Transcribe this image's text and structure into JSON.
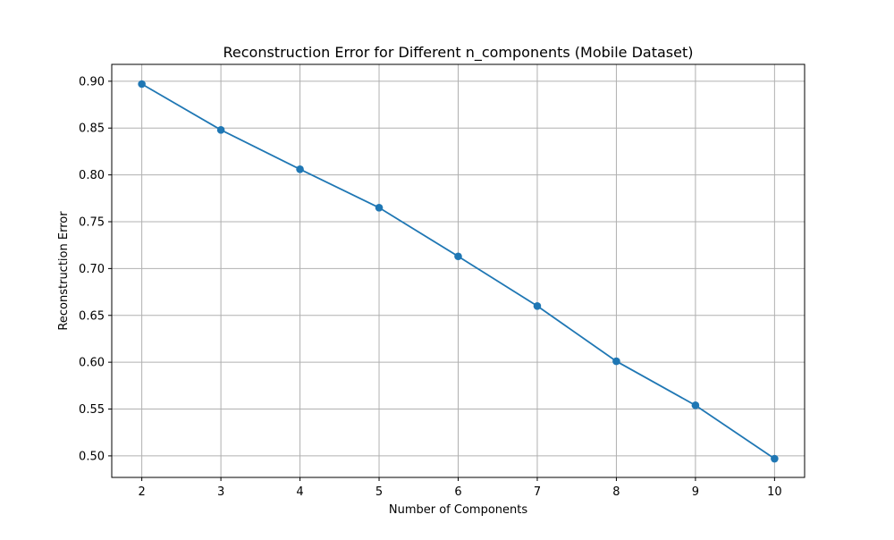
{
  "chart_data": {
    "type": "line",
    "title": "Reconstruction Error for Different n_components (Mobile Dataset)",
    "xlabel": "Number of Components",
    "ylabel": "Reconstruction Error",
    "x": [
      2,
      3,
      4,
      5,
      6,
      7,
      8,
      9,
      10
    ],
    "series": [
      {
        "values": [
          0.897,
          0.848,
          0.806,
          0.765,
          0.713,
          0.66,
          0.601,
          0.554,
          0.497
        ],
        "color": "#1f77b4",
        "marker": "circle"
      }
    ],
    "xlim": [
      1.62,
      10.38
    ],
    "ylim": [
      0.477,
      0.918
    ],
    "xticks": [
      2,
      3,
      4,
      5,
      6,
      7,
      8,
      9,
      10
    ],
    "yticks": [
      0.5,
      0.55,
      0.6,
      0.65,
      0.7,
      0.75,
      0.8,
      0.85,
      0.9
    ],
    "ytick_labels": [
      "0.50",
      "0.55",
      "0.60",
      "0.65",
      "0.70",
      "0.75",
      "0.80",
      "0.85",
      "0.90"
    ],
    "grid": true,
    "legend": null
  }
}
